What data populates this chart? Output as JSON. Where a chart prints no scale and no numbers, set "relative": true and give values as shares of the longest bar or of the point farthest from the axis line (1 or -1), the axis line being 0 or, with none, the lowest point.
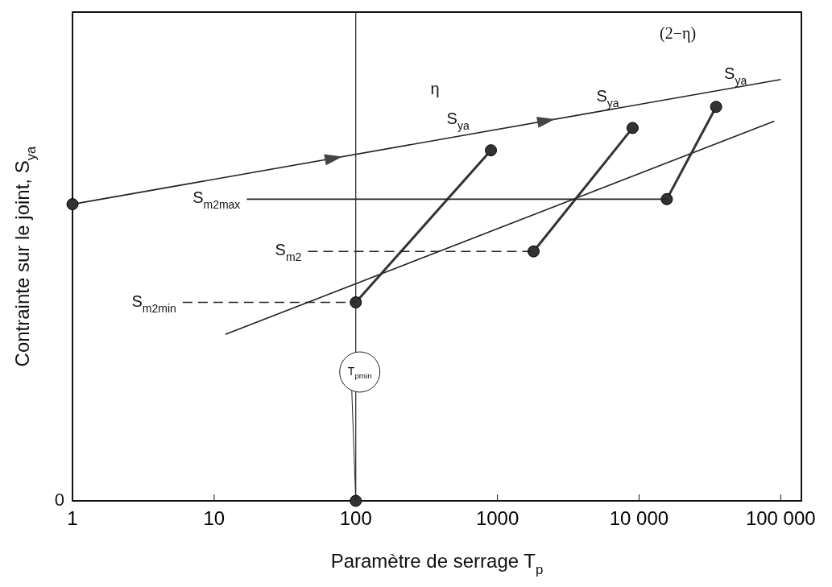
{
  "chart_data": {
    "type": "line",
    "xlabel": "Paramètre de serrage T$_{p}$",
    "ylabel": "Contrainte sur le joint, S$_{ya}$",
    "relative": true,
    "log": "x",
    "xlim": [
      1,
      140000
    ],
    "xticks": [
      1,
      10,
      100,
      1000,
      {
        "value": 10000,
        "label": "10 000"
      },
      {
        "value": 100000,
        "label": "100 000"
      }
    ],
    "marker": "none",
    "line_style": "solid",
    "series": [
      {
        "color": "#222222",
        "x": [
          1,
          100000
        ],
        "values": [
          0.704,
          1
        ]
      },
      {
        "color": "#222222",
        "x": [
          12,
          90000
        ],
        "values": [
          0.395,
          0.901
        ]
      },
      {
        "color": "#333333",
        "x": [
          100,
          900
        ],
        "values": [
          0.471,
          0.832
        ],
        "marker": "circle"
      },
      {
        "color": "#333333",
        "x": [
          1800,
          9000
        ],
        "values": [
          0.592,
          0.885
        ],
        "marker": "circle"
      },
      {
        "color": "#333333",
        "x": [
          15700,
          35000
        ],
        "values": [
          0.716,
          0.935
        ],
        "marker": "circle"
      },
      {
        "color": "#222222",
        "x": [
          17,
          15700
        ],
        "values": [
          0.716,
          0.716
        ]
      },
      {
        "color": "#222222",
        "x": [
          46,
          1800
        ],
        "values": [
          0.592,
          0.592
        ],
        "line_style": "dashed"
      },
      {
        "color": "#222222",
        "x": [
          6,
          100
        ],
        "values": [
          0.471,
          0.471
        ],
        "line_style": "dashed"
      },
      {
        "type": "scatter",
        "color": "#333333",
        "x": [
          1,
          100
        ],
        "values": [
          0.704,
          0
        ],
        "marker": "circle"
      }
    ],
    "ref_lines": [
      {
        "axis": "x",
        "value": 100,
        "color": "#222222"
      }
    ],
    "annotations": [
      "0",
      "η",
      "S$_{ya}$",
      "S$_{ya}$",
      "(2−η)",
      "S$_{ya}$",
      "S$_{m2max}$",
      "S$_{m2}$",
      "S$_{m2min}$",
      {
        "text": "T$_{pmin}$",
        "x": 100,
        "y": 0
      }
    ]
  }
}
